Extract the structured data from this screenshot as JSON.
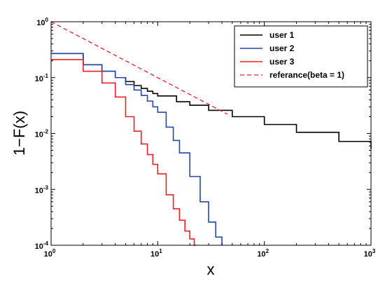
{
  "chart_data": {
    "type": "line",
    "xscale": "log",
    "yscale": "log",
    "xlim": [
      1,
      1000
    ],
    "ylim": [
      0.0001,
      1
    ],
    "xlabel": "x",
    "ylabel": "1−F(x)",
    "x_ticks": [
      {
        "value": 1,
        "base": "10",
        "exp": "0"
      },
      {
        "value": 10,
        "base": "10",
        "exp": "1"
      },
      {
        "value": 100,
        "base": "10",
        "exp": "2"
      },
      {
        "value": 1000,
        "base": "10",
        "exp": "3"
      }
    ],
    "y_ticks": [
      {
        "value": 0.0001,
        "base": "10",
        "exp": "-4"
      },
      {
        "value": 0.001,
        "base": "10",
        "exp": "-3"
      },
      {
        "value": 0.01,
        "base": "10",
        "exp": "-2"
      },
      {
        "value": 0.1,
        "base": "10",
        "exp": "-1"
      },
      {
        "value": 1,
        "base": "10",
        "exp": "0"
      }
    ],
    "legend_position": "top-right",
    "series": [
      {
        "name": "user 1",
        "color": "#000000",
        "style": "step",
        "x": [
          1,
          2,
          3,
          4,
          5,
          6,
          7,
          8,
          9,
          10,
          15,
          20,
          30,
          50,
          100,
          200,
          500,
          1000
        ],
        "y": [
          0.27,
          0.17,
          0.13,
          0.1,
          0.085,
          0.072,
          0.064,
          0.057,
          0.052,
          0.047,
          0.037,
          0.032,
          0.026,
          0.02,
          0.0145,
          0.0105,
          0.0072,
          0.0053
        ]
      },
      {
        "name": "user 2",
        "color": "#2547a8",
        "style": "step",
        "x": [
          1,
          2,
          3,
          4,
          5,
          6,
          7,
          8,
          9,
          10,
          12,
          14,
          16,
          20,
          25,
          30,
          35,
          40
        ],
        "y": [
          0.27,
          0.17,
          0.13,
          0.1,
          0.075,
          0.06,
          0.048,
          0.038,
          0.03,
          0.024,
          0.013,
          0.0075,
          0.0045,
          0.0017,
          0.0006,
          0.00026,
          0.00014,
          0.0001
        ]
      },
      {
        "name": "user 3",
        "color": "#e8202a",
        "style": "step",
        "x": [
          1,
          2,
          3,
          4,
          5,
          6,
          7,
          8,
          9,
          10,
          12,
          14,
          16,
          18,
          20,
          22,
          23
        ],
        "y": [
          0.21,
          0.13,
          0.08,
          0.045,
          0.02,
          0.011,
          0.0065,
          0.0042,
          0.0028,
          0.0019,
          0.0008,
          0.00045,
          0.00028,
          0.00018,
          0.00013,
          0.0001,
          0.0001
        ]
      },
      {
        "name": "referance(beta = 1)",
        "color": "#e8202a",
        "style": "dashed",
        "x": [
          1,
          45
        ],
        "y": [
          1,
          0.0222
        ]
      }
    ]
  }
}
